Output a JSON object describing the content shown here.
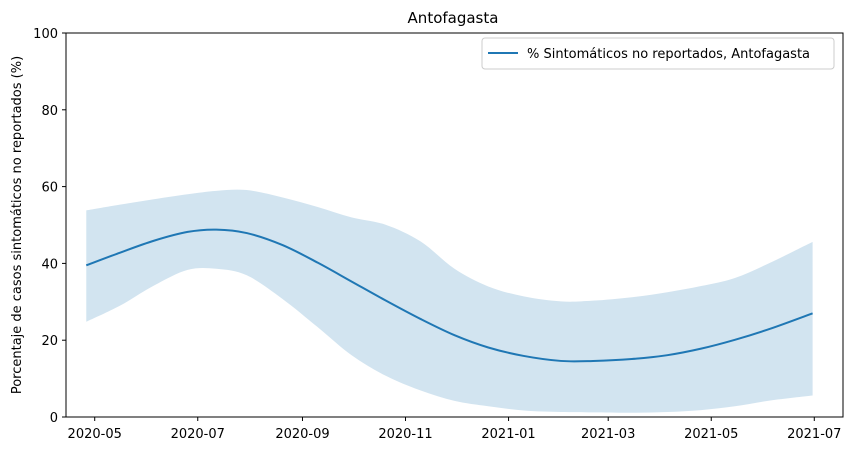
{
  "chart_data": {
    "type": "line",
    "title": "Antofagasta",
    "xlabel": "",
    "ylabel": "Porcentaje de casos sintomáticos no reportados (%)",
    "ylim": [
      0,
      100
    ],
    "xlim": [
      "2020-04-14",
      "2021-07-18"
    ],
    "x_ticks": [
      "2020-05-01",
      "2020-07-01",
      "2020-09-01",
      "2020-11-01",
      "2021-01-01",
      "2021-03-01",
      "2021-05-01",
      "2021-07-01"
    ],
    "x_tick_labels": [
      "2020-05",
      "2020-07",
      "2020-09",
      "2020-11",
      "2021-01",
      "2021-03",
      "2021-05",
      "2021-07"
    ],
    "y_ticks": [
      0,
      20,
      40,
      60,
      80,
      100
    ],
    "y_tick_labels": [
      "0",
      "20",
      "40",
      "60",
      "80",
      "100"
    ],
    "grid": false,
    "legend": "top-right",
    "colors": {
      "line": "#1f77b4",
      "band": "#1f77b4"
    },
    "series": [
      {
        "name": "% Sintomáticos no reportados, Antofagasta",
        "x": [
          "2020-04-26",
          "2020-05-16",
          "2020-06-05",
          "2020-06-25",
          "2020-07-12",
          "2020-07-30",
          "2020-08-20",
          "2020-09-10",
          "2020-09-30",
          "2020-10-20",
          "2020-11-10",
          "2020-11-30",
          "2020-12-20",
          "2021-01-10",
          "2021-02-01",
          "2021-02-20",
          "2021-03-15",
          "2021-04-05",
          "2021-04-25",
          "2021-05-15",
          "2021-06-05",
          "2021-06-30"
        ],
        "values": [
          39.5,
          42.8,
          45.9,
          48.2,
          48.8,
          47.9,
          44.8,
          40.2,
          35.3,
          30.4,
          25.5,
          21.3,
          18.1,
          15.9,
          14.6,
          14.6,
          15.1,
          16.1,
          17.8,
          20.1,
          23.0,
          27.0
        ],
        "lower": [
          24.8,
          29.0,
          34.2,
          38.3,
          38.6,
          36.9,
          30.8,
          23.4,
          16.1,
          10.8,
          6.9,
          4.2,
          2.8,
          1.7,
          1.3,
          1.2,
          1.1,
          1.3,
          1.8,
          2.8,
          4.3,
          5.6
        ],
        "upper": [
          53.8,
          55.3,
          56.7,
          58.0,
          58.9,
          59.1,
          57.2,
          54.7,
          52.0,
          50.1,
          45.7,
          38.6,
          34.0,
          31.4,
          30.1,
          30.3,
          31.2,
          32.5,
          34.1,
          36.2,
          40.2,
          45.6
        ]
      }
    ]
  }
}
